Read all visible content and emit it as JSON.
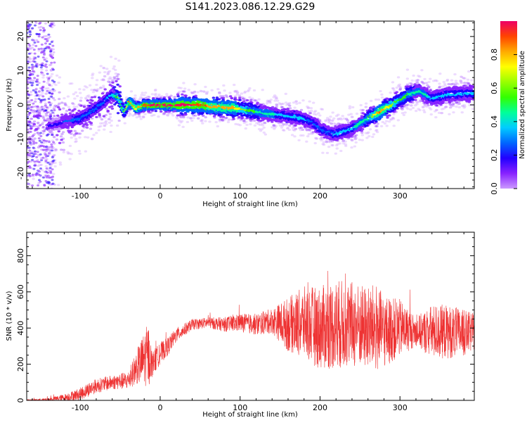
{
  "title": "S141.2023.086.12.29.G29",
  "colors": {
    "trace": "#ee3333",
    "background": "#ffffff",
    "colormap": [
      "#cc99ff",
      "#8822ff",
      "#2200ff",
      "#0066ff",
      "#00ccff",
      "#00ff99",
      "#33ff00",
      "#99ff00",
      "#ffff00",
      "#ffaa00",
      "#ff4400",
      "#ee0066"
    ]
  },
  "chart_data": [
    {
      "type": "heatmap",
      "xlabel": "Height of straight line (km)",
      "ylabel": "Frequency (Hz)",
      "xlim": [
        -167,
        393
      ],
      "ylim": [
        -24.5,
        24.5
      ],
      "xticks": [
        -100,
        0,
        100,
        200,
        300
      ],
      "yticks": [
        -20,
        -10,
        0,
        10,
        20
      ],
      "grid": false,
      "ridge": {
        "x": [
          -135,
          -120,
          -100,
          -80,
          -60,
          -52,
          -45,
          -38,
          -30,
          -20,
          0,
          20,
          50,
          70,
          90,
          110,
          130,
          150,
          170,
          190,
          200,
          210,
          220,
          240,
          260,
          275,
          290,
          310,
          325,
          340,
          360,
          390
        ],
        "y": [
          -6,
          -5,
          -4,
          -1,
          3,
          2,
          -2,
          1,
          -1,
          0,
          0,
          0,
          0,
          -0.5,
          -0.8,
          -1.5,
          -2.5,
          -3,
          -3.5,
          -5,
          -7,
          -8,
          -8.5,
          -7,
          -4,
          -2,
          0,
          3,
          4,
          2,
          3,
          3.5
        ],
        "peak_amplitude": [
          0.2,
          0.25,
          0.3,
          0.3,
          0.35,
          0.6,
          0.55,
          0.85,
          0.7,
          0.9,
          0.95,
          0.95,
          0.9,
          0.75,
          0.8,
          0.55,
          0.45,
          0.4,
          0.4,
          0.3,
          0.3,
          0.3,
          0.35,
          0.4,
          0.5,
          0.85,
          0.6,
          0.5,
          0.45,
          0.4,
          0.4,
          0.4
        ]
      },
      "colorbar": {
        "label": "Normalized spectral amplitude",
        "range": [
          0,
          1
        ],
        "ticks": [
          "0.0",
          "0.2",
          "0.4",
          "0.6",
          "0.8"
        ]
      }
    },
    {
      "type": "line",
      "xlabel": "Height of straight line (km)",
      "ylabel": "SNR (10 * v/v)",
      "xlim": [
        -167,
        393
      ],
      "ylim": [
        0,
        930
      ],
      "xticks": [
        -100,
        0,
        100,
        200,
        300
      ],
      "yticks": [
        0,
        200,
        400,
        600,
        800
      ],
      "grid": false,
      "series": [
        {
          "x": [
            -167,
            -140,
            -120,
            -100,
            -90,
            -80,
            -60,
            -40,
            -30,
            -20,
            -15,
            -10,
            0,
            10,
            20,
            40,
            60,
            80,
            100,
            120,
            140,
            160,
            180,
            200,
            220,
            240,
            260,
            270,
            280,
            300,
            320,
            340,
            360,
            380,
            393
          ],
          "y": [
            0,
            5,
            15,
            35,
            60,
            80,
            100,
            110,
            180,
            230,
            250,
            200,
            260,
            300,
            360,
            420,
            430,
            420,
            430,
            420,
            440,
            420,
            430,
            400,
            420,
            420,
            400,
            400,
            380,
            400,
            380,
            380,
            380,
            370,
            380
          ],
          "spread": [
            5,
            8,
            20,
            35,
            40,
            40,
            40,
            50,
            90,
            150,
            180,
            70,
            60,
            50,
            40,
            30,
            30,
            40,
            50,
            60,
            70,
            150,
            200,
            230,
            250,
            240,
            230,
            250,
            200,
            160,
            80,
            150,
            150,
            130,
            100
          ]
        }
      ]
    }
  ]
}
